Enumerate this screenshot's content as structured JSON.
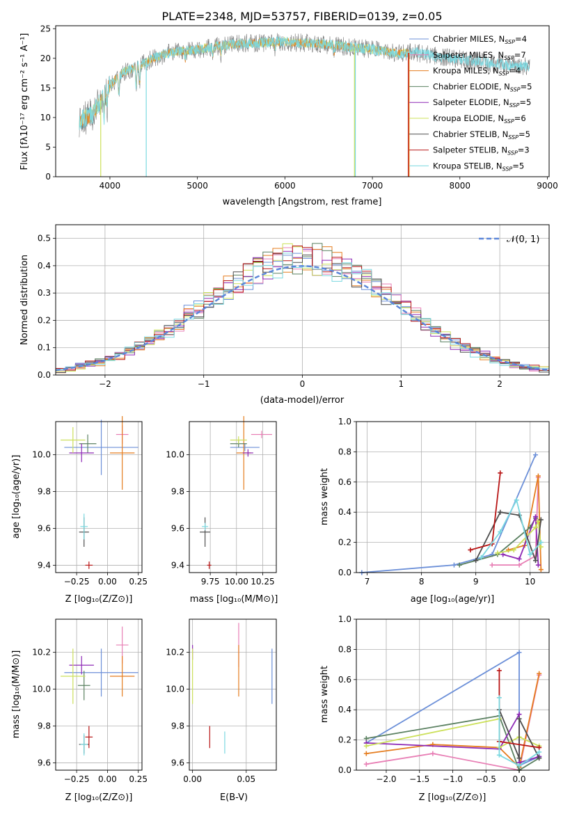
{
  "colors": {
    "chab_miles": "#6b8fd8",
    "salp_miles": "#e87fb5",
    "krou_miles": "#e57c1e",
    "chab_elodie": "#5a8060",
    "salp_elodie": "#8d28b5",
    "krou_elodie": "#cce05a",
    "chab_stelib": "#4c4c4c",
    "salp_stelib": "#b81414",
    "krou_stelib": "#7ad8e0",
    "grid": "#b0b0b0",
    "normal_line": "#5b86d9"
  },
  "chart_data": [
    {
      "id": "spectrum",
      "type": "line",
      "title": "PLATE=2348, MJD=53757, FIBERID=0139, z=0.05",
      "xlabel": "wavelength [Angstrom, rest frame]",
      "ylabel": "Flux [fλ10⁻¹⁷ erg cm⁻² s⁻¹ A⁻¹]",
      "xlim": [
        3380,
        9020
      ],
      "ylim": [
        0,
        25.5
      ],
      "xticks": [
        4000,
        5000,
        6000,
        7000,
        8000,
        9000
      ],
      "yticks": [
        0,
        5,
        10,
        15,
        20,
        25
      ],
      "grid": false,
      "legend_position": "right",
      "legend": [
        {
          "label": "Chabrier MILES, N_SSP=4",
          "text": "Chabrier MILES, N",
          "sub": "SSP",
          "val": "=4",
          "color_key": "chab_miles"
        },
        {
          "label": "Salpeter MILES, N_SSP=7",
          "text": "Salpeter MILES, N",
          "sub": "SSP",
          "val": "=7",
          "color_key": "salp_miles"
        },
        {
          "label": "Kroupa MILES, N_SSP=4",
          "text": "Kroupa MILES, N",
          "sub": "SSP",
          "val": "=4",
          "color_key": "krou_miles"
        },
        {
          "label": "Chabrier ELODIE, N_SSP=5",
          "text": "Chabrier ELODIE, N",
          "sub": "SSP",
          "val": "=5",
          "color_key": "chab_elodie"
        },
        {
          "label": "Salpeter ELODIE, N_SSP=5",
          "text": "Salpeter ELODIE, N",
          "sub": "SSP",
          "val": "=5",
          "color_key": "salp_elodie"
        },
        {
          "label": "Kroupa ELODIE, N_SSP=6",
          "text": "Kroupa ELODIE, N",
          "sub": "SSP",
          "val": "=6",
          "color_key": "krou_elodie"
        },
        {
          "label": "Chabrier STELIB, N_SSP=5",
          "text": "Chabrier STELIB, N",
          "sub": "SSP",
          "val": "=5",
          "color_key": "chab_stelib"
        },
        {
          "label": "Salpeter STELIB, N_SSP=3",
          "text": "Salpeter STELIB, N",
          "sub": "SSP",
          "val": "=3",
          "color_key": "salp_stelib"
        },
        {
          "label": "Kroupa STELIB, N_SSP=5",
          "text": "Kroupa STELIB, N",
          "sub": "SSP",
          "val": "=5",
          "color_key": "krou_stelib"
        }
      ],
      "continuum": [
        [
          3650,
          9.5
        ],
        [
          3700,
          9.8
        ],
        [
          3800,
          10.5
        ],
        [
          3900,
          13
        ],
        [
          4000,
          15.5
        ],
        [
          4100,
          17
        ],
        [
          4200,
          18
        ],
        [
          4300,
          18.5
        ],
        [
          4500,
          20
        ],
        [
          4700,
          21
        ],
        [
          5000,
          21.5
        ],
        [
          5200,
          22
        ],
        [
          5500,
          22.5
        ],
        [
          6000,
          22.8
        ],
        [
          6500,
          22.3
        ],
        [
          7000,
          21.5
        ],
        [
          7300,
          20.8
        ],
        [
          7500,
          21
        ],
        [
          7800,
          20.2
        ],
        [
          8200,
          19.5
        ],
        [
          8600,
          18.8
        ],
        [
          8800,
          18.5
        ]
      ],
      "spectrum_range": [
        3650,
        8800
      ],
      "model_ranges": {
        "krou_elodie": [
          3650,
          3895,
          4000,
          6795
        ],
        "salp_stelib": [
          3650,
          7410
        ],
        "krou_stelib": [
          3650,
          4415,
          4420,
          6805
        ],
        "krou_miles": [
          3650,
          7420
        ]
      },
      "drops": [
        {
          "x": 3895,
          "color_key": "krou_elodie"
        },
        {
          "x": 4415,
          "color_key": "krou_stelib"
        },
        {
          "x": 6795,
          "color_key": "krou_elodie"
        },
        {
          "x": 6805,
          "color_key": "krou_stelib"
        },
        {
          "x": 7410,
          "color_key": "salp_stelib"
        },
        {
          "x": 7420,
          "color_key": "krou_miles"
        }
      ]
    },
    {
      "id": "residuals",
      "type": "histogram",
      "xlabel": "(data-model)/error",
      "ylabel": "Normed distribution",
      "xlim": [
        -2.5,
        2.5
      ],
      "ylim": [
        0,
        0.55
      ],
      "xticks": [
        -2,
        -1,
        0,
        1,
        2
      ],
      "yticks": [
        0.0,
        0.1,
        0.2,
        0.3,
        0.4,
        0.5
      ],
      "grid": true,
      "legend_label": "𝒩(0, 1)",
      "legend_position": "top-right",
      "bin_width": 0.1
    },
    {
      "id": "age_vs_Z",
      "type": "scatter",
      "xlabel": "Z [log₁₀(Z/Z⊙)]",
      "ylabel": "age  [log₁₀(age/yr)]",
      "xlim": [
        -0.42,
        0.28
      ],
      "ylim": [
        9.36,
        10.18
      ],
      "xticks": [
        -0.25,
        0.0,
        0.25
      ],
      "yticks": [
        9.4,
        9.6,
        9.8,
        10.0
      ],
      "grid": true,
      "points": [
        {
          "color_key": "chab_miles",
          "x": -0.05,
          "y": 10.04,
          "xerr": 0.3,
          "yerr": 0.15
        },
        {
          "color_key": "salp_miles",
          "x": 0.12,
          "y": 10.11,
          "xerr": 0.05,
          "yerr": 0.05
        },
        {
          "color_key": "krou_miles",
          "x": 0.12,
          "y": 10.01,
          "xerr": 0.1,
          "yerr": 0.2
        },
        {
          "color_key": "chab_elodie",
          "x": -0.16,
          "y": 10.06,
          "xerr": 0.07,
          "yerr": 0.05
        },
        {
          "color_key": "salp_elodie",
          "x": -0.21,
          "y": 10.01,
          "xerr": 0.1,
          "yerr": 0.05
        },
        {
          "color_key": "krou_elodie",
          "x": -0.28,
          "y": 10.08,
          "xerr": 0.1,
          "yerr": 0.07
        },
        {
          "color_key": "chab_stelib",
          "x": -0.19,
          "y": 9.58,
          "xerr": 0.04,
          "yerr": 0.08
        },
        {
          "color_key": "salp_stelib",
          "x": -0.15,
          "y": 9.4,
          "xerr": 0.03,
          "yerr": 0.0
        },
        {
          "color_key": "krou_stelib",
          "x": -0.19,
          "y": 9.61,
          "xerr": 0.03,
          "yerr": 0.07
        }
      ]
    },
    {
      "id": "age_vs_mass",
      "type": "scatter",
      "xlabel": "mass [log₁₀(M/M⊙)]",
      "ylabel": "",
      "xlim": [
        9.55,
        10.38
      ],
      "ylim": [
        9.36,
        10.18
      ],
      "xticks": [
        9.75,
        10.0,
        10.25
      ],
      "yticks": [
        9.4,
        9.6,
        9.8,
        10.0
      ],
      "grid": true,
      "points": [
        {
          "color_key": "chab_miles",
          "x": 10.08,
          "y": 10.04,
          "xerr": 0.14,
          "yerr": 0.0
        },
        {
          "color_key": "salp_miles",
          "x": 10.24,
          "y": 10.11,
          "xerr": 0.1,
          "yerr": 0.0
        },
        {
          "color_key": "krou_miles",
          "x": 10.07,
          "y": 10.01,
          "xerr": 0.07,
          "yerr": 0.2
        },
        {
          "color_key": "chab_elodie",
          "x": 10.02,
          "y": 10.06,
          "xerr": 0.08,
          "yerr": 0.0
        },
        {
          "color_key": "salp_elodie",
          "x": 10.11,
          "y": 10.01,
          "xerr": 0.05,
          "yerr": 0.0
        },
        {
          "color_key": "krou_elodie",
          "x": 10.02,
          "y": 10.08,
          "xerr": 0.08,
          "yerr": 0.0
        },
        {
          "color_key": "chab_stelib",
          "x": 9.7,
          "y": 9.58,
          "xerr": 0.05,
          "yerr": 0.08
        },
        {
          "color_key": "salp_stelib",
          "x": 9.74,
          "y": 9.4,
          "xerr": 0.02,
          "yerr": 0.0
        },
        {
          "color_key": "krou_stelib",
          "x": 9.7,
          "y": 9.61,
          "xerr": 0.03,
          "yerr": 0.0
        }
      ]
    },
    {
      "id": "weight_vs_age",
      "type": "line",
      "xlabel": "age  [log₁₀(age/yr)]",
      "ylabel": "mass weight",
      "xlim": [
        6.8,
        10.35
      ],
      "ylim": [
        0,
        1.0
      ],
      "xticks": [
        7,
        8,
        9,
        10
      ],
      "yticks": [
        0.0,
        0.2,
        0.4,
        0.6,
        0.8,
        1.0
      ],
      "grid": true,
      "series": [
        {
          "color_key": "chab_miles",
          "points": [
            [
              6.9,
              0.0
            ],
            [
              8.6,
              0.05
            ],
            [
              9.3,
              0.12
            ],
            [
              10.1,
              0.78
            ]
          ]
        },
        {
          "color_key": "salp_miles",
          "points": [
            [
              9.3,
              0.05
            ],
            [
              9.8,
              0.05
            ],
            [
              10.1,
              0.11
            ],
            [
              10.15,
              0.63
            ]
          ]
        },
        {
          "color_key": "krou_miles",
          "points": [
            [
              9.6,
              0.15
            ],
            [
              9.9,
              0.18
            ],
            [
              10.15,
              0.64
            ],
            [
              10.2,
              0.02
            ]
          ]
        },
        {
          "color_key": "chab_elodie",
          "points": [
            [
              8.7,
              0.05
            ],
            [
              9.4,
              0.12
            ],
            [
              10.0,
              0.3
            ],
            [
              10.1,
              0.36
            ]
          ]
        },
        {
          "color_key": "salp_elodie",
          "points": [
            [
              9.5,
              0.12
            ],
            [
              9.8,
              0.09
            ],
            [
              10.1,
              0.37
            ],
            [
              10.15,
              0.05
            ]
          ]
        },
        {
          "color_key": "krou_elodie",
          "points": [
            [
              9.4,
              0.13
            ],
            [
              9.7,
              0.15
            ],
            [
              10.1,
              0.3
            ],
            [
              10.15,
              0.34
            ],
            [
              10.2,
              0.17
            ]
          ]
        },
        {
          "color_key": "chab_stelib",
          "points": [
            [
              9.0,
              0.08
            ],
            [
              9.45,
              0.4
            ],
            [
              9.8,
              0.38
            ],
            [
              10.1,
              0.08
            ],
            [
              10.2,
              0.35
            ]
          ]
        },
        {
          "color_key": "salp_stelib",
          "points": [
            [
              8.9,
              0.15
            ],
            [
              9.3,
              0.19
            ],
            [
              9.45,
              0.66
            ]
          ]
        },
        {
          "color_key": "krou_stelib",
          "points": [
            [
              9.1,
              0.1
            ],
            [
              9.45,
              0.27
            ],
            [
              9.75,
              0.48
            ],
            [
              10.0,
              0.12
            ],
            [
              10.2,
              0.2
            ]
          ]
        }
      ]
    },
    {
      "id": "mass_vs_Z",
      "type": "scatter",
      "xlabel": "Z [log₁₀(Z/Z⊙)]",
      "ylabel": "mass [log₁₀(M/M⊙)]",
      "xlim": [
        -0.42,
        0.28
      ],
      "ylim": [
        9.56,
        10.38
      ],
      "xticks": [
        -0.25,
        0.0,
        0.25
      ],
      "yticks": [
        9.6,
        9.8,
        10.0,
        10.2
      ],
      "grid": true,
      "points": [
        {
          "color_key": "chab_miles",
          "x": -0.05,
          "y": 10.09,
          "xerr": 0.3,
          "yerr": 0.13
        },
        {
          "color_key": "salp_miles",
          "x": 0.12,
          "y": 10.24,
          "xerr": 0.05,
          "yerr": 0.1
        },
        {
          "color_key": "krou_miles",
          "x": 0.12,
          "y": 10.07,
          "xerr": 0.1,
          "yerr": 0.11
        },
        {
          "color_key": "chab_elodie",
          "x": -0.19,
          "y": 10.02,
          "xerr": 0.05,
          "yerr": 0.08
        },
        {
          "color_key": "salp_elodie",
          "x": -0.21,
          "y": 10.13,
          "xerr": 0.1,
          "yerr": 0.05
        },
        {
          "color_key": "krou_elodie",
          "x": -0.28,
          "y": 10.07,
          "xerr": 0.1,
          "yerr": 0.15
        },
        {
          "color_key": "chab_stelib",
          "x": -0.19,
          "y": 9.7,
          "xerr": 0.04,
          "yerr": 0.05
        },
        {
          "color_key": "salp_stelib",
          "x": -0.15,
          "y": 9.74,
          "xerr": 0.03,
          "yerr": 0.06
        },
        {
          "color_key": "krou_stelib",
          "x": -0.19,
          "y": 9.7,
          "xerr": 0.03,
          "yerr": 0.06
        }
      ]
    },
    {
      "id": "mass_vs_ebv",
      "type": "scatter",
      "xlabel": "E(B-V)",
      "ylabel": "",
      "xlim": [
        -0.003,
        0.078
      ],
      "ylim": [
        9.56,
        10.38
      ],
      "xticks": [
        0.0,
        0.05
      ],
      "xtick_labels": [
        "0.00",
        "0.05"
      ],
      "yticks": [
        9.6,
        9.8,
        10.0,
        10.2
      ],
      "grid": true,
      "points": [
        {
          "color_key": "chab_miles",
          "x": 0.074,
          "y": 10.07,
          "xerr": 0.0,
          "yerr": 0.15
        },
        {
          "color_key": "salp_miles",
          "x": 0.043,
          "y": 10.24,
          "xerr": 0.0,
          "yerr": 0.12
        },
        {
          "color_key": "krou_miles",
          "x": 0.043,
          "y": 10.1,
          "xerr": 0.0,
          "yerr": 0.14
        },
        {
          "color_key": "salp_elodie",
          "x": 0.0,
          "y": 10.2,
          "xerr": 0.0,
          "yerr": 0.04
        },
        {
          "color_key": "krou_elodie",
          "x": 0.0,
          "y": 10.07,
          "xerr": 0.0,
          "yerr": 0.15
        },
        {
          "color_key": "salp_stelib",
          "x": 0.016,
          "y": 9.74,
          "xerr": 0.0,
          "yerr": 0.06
        },
        {
          "color_key": "krou_stelib",
          "x": 0.03,
          "y": 9.71,
          "xerr": 0.0,
          "yerr": 0.06
        }
      ]
    },
    {
      "id": "weight_vs_Z",
      "type": "line",
      "xlabel": "Z [log₁₀(Z/Z⊙)]",
      "ylabel": "mass weight",
      "xlim": [
        -2.45,
        0.45
      ],
      "ylim": [
        0,
        1.0
      ],
      "xticks": [
        -2.0,
        -1.5,
        -1.0,
        -0.5,
        0.0
      ],
      "yticks": [
        0.0,
        0.2,
        0.4,
        0.6,
        0.8,
        1.0
      ],
      "grid": true,
      "series": [
        {
          "color_key": "chab_miles",
          "points": [
            [
              -2.3,
              0.18
            ],
            [
              0.0,
              0.78
            ],
            [
              0.0,
              0.03
            ],
            [
              0.3,
              0.09
            ]
          ]
        },
        {
          "color_key": "salp_miles",
          "points": [
            [
              -2.3,
              0.04
            ],
            [
              -1.3,
              0.11
            ],
            [
              0.0,
              0.0
            ],
            [
              0.3,
              0.63
            ]
          ]
        },
        {
          "color_key": "krou_miles",
          "points": [
            [
              -2.3,
              0.11
            ],
            [
              -1.3,
              0.17
            ],
            [
              -0.3,
              0.15
            ],
            [
              0.0,
              0.02
            ],
            [
              0.3,
              0.64
            ]
          ]
        },
        {
          "color_key": "chab_elodie",
          "points": [
            [
              -2.3,
              0.21
            ],
            [
              -0.3,
              0.36
            ],
            [
              0.0,
              0.0
            ],
            [
              0.3,
              0.08
            ]
          ]
        },
        {
          "color_key": "salp_elodie",
          "points": [
            [
              -2.3,
              0.18
            ],
            [
              -0.3,
              0.14
            ],
            [
              0.0,
              0.37
            ],
            [
              0.0,
              0.05
            ],
            [
              0.3,
              0.09
            ]
          ]
        },
        {
          "color_key": "krou_elodie",
          "points": [
            [
              -2.3,
              0.16
            ],
            [
              -0.3,
              0.34
            ],
            [
              -0.3,
              0.15
            ],
            [
              0.0,
              0.22
            ],
            [
              0.3,
              0.16
            ]
          ]
        },
        {
          "color_key": "chab_stelib",
          "points": [
            [
              -0.3,
              0.4
            ],
            [
              0.0,
              0.08
            ],
            [
              0.0,
              0.34
            ],
            [
              0.3,
              0.08
            ]
          ]
        },
        {
          "color_key": "salp_stelib",
          "points": [
            [
              -0.3,
              0.66
            ],
            [
              -0.3,
              0.19
            ],
            [
              0.3,
              0.15
            ]
          ]
        },
        {
          "color_key": "krou_stelib",
          "points": [
            [
              -0.3,
              0.48
            ],
            [
              -0.3,
              0.1
            ],
            [
              0.0,
              0.03
            ],
            [
              0.3,
              0.12
            ]
          ]
        }
      ]
    }
  ]
}
